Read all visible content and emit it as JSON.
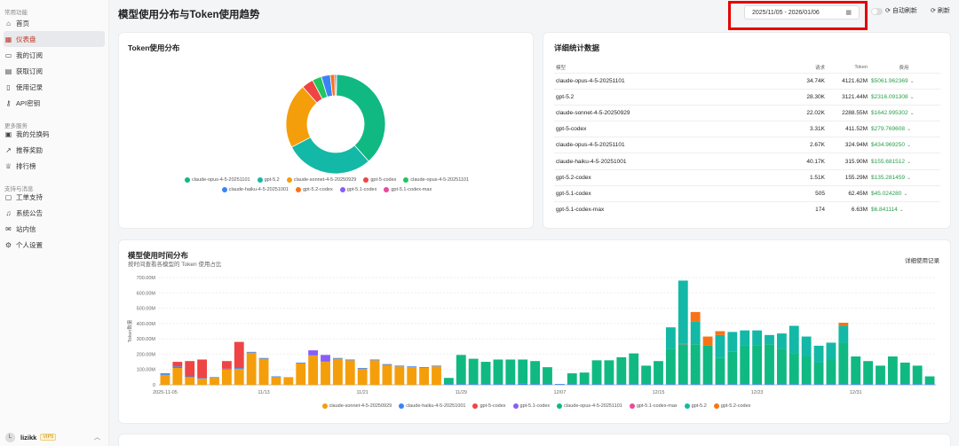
{
  "sidebar": {
    "sections": [
      {
        "title": "常用功能",
        "items": [
          {
            "label": "首页",
            "icon": "home-icon",
            "glyph": "⌂"
          },
          {
            "label": "仪表盘",
            "icon": "dashboard-icon",
            "glyph": "▦",
            "active": true
          },
          {
            "label": "我的订阅",
            "icon": "subscription-icon",
            "glyph": "▭"
          },
          {
            "label": "获取订阅",
            "icon": "cart-icon",
            "glyph": "▤"
          },
          {
            "label": "使用记录",
            "icon": "document-icon",
            "glyph": "▯"
          },
          {
            "label": "API密钥",
            "icon": "key-icon",
            "glyph": "⚷"
          }
        ]
      },
      {
        "title": "更多服务",
        "items": [
          {
            "label": "我的兑换码",
            "icon": "ticket-icon",
            "glyph": "▣"
          },
          {
            "label": "推荐奖励",
            "icon": "trend-icon",
            "glyph": "↗"
          },
          {
            "label": "排行榜",
            "icon": "trophy-icon",
            "glyph": "♕"
          }
        ]
      },
      {
        "title": "支持与消息",
        "items": [
          {
            "label": "工单支持",
            "icon": "message-icon",
            "glyph": "▢"
          },
          {
            "label": "系统公告",
            "icon": "bell-icon",
            "glyph": "♫"
          },
          {
            "label": "站内信",
            "icon": "mail-icon",
            "glyph": "✉"
          },
          {
            "label": "个人设置",
            "icon": "gear-icon",
            "glyph": "⚙"
          }
        ]
      }
    ],
    "user": {
      "avatar": "L",
      "name": "lizikk",
      "badge": "VIP5"
    }
  },
  "header": {
    "title": "模型使用分布与Token使用趋势",
    "date_range": "2025/11/05 - 2026/01/06",
    "auto_refresh_label": "自动刷新",
    "refresh_label": "刷新"
  },
  "pie_card": {
    "title": "Token使用分布",
    "chart_data": {
      "type": "pie",
      "donut": true,
      "legend_placement": "bottom",
      "slices": [
        {
          "name": "claude-opus-4-5-20251101",
          "value": 4121.62,
          "color": "#10b981"
        },
        {
          "name": "gpt-5.2",
          "value": 3121.44,
          "color": "#14b8a6"
        },
        {
          "name": "claude-sonnet-4-5-20250929",
          "value": 2288.55,
          "color": "#f59e0b"
        },
        {
          "name": "gpt-5-codex",
          "value": 411.52,
          "color": "#ef4444"
        },
        {
          "name": "claude-opus-4-5-20251101",
          "value": 324.94,
          "color": "#22c55e"
        },
        {
          "name": "claude-haiku-4-5-20251001",
          "value": 315.9,
          "color": "#3b82f6"
        },
        {
          "name": "gpt-5.2-codex",
          "value": 155.29,
          "color": "#f97316"
        },
        {
          "name": "gpt-5.1-codex",
          "value": 62.45,
          "color": "#8b5cf6"
        },
        {
          "name": "gpt-5.1-codex-max",
          "value": 6.63,
          "color": "#ec4899"
        }
      ]
    }
  },
  "stats_card": {
    "title": "详细统计数据",
    "columns": [
      "模型",
      "请求",
      "Token",
      "费用"
    ],
    "rows": [
      {
        "model": "claude-opus-4-5-20251101",
        "requests": "34.74K",
        "tokens": "4121.62M",
        "cost": "$5061.962369"
      },
      {
        "model": "gpt-5.2",
        "requests": "28.30K",
        "tokens": "3121.44M",
        "cost": "$2316.091308"
      },
      {
        "model": "claude-sonnet-4-5-20250929",
        "requests": "22.02K",
        "tokens": "2288.55M",
        "cost": "$1642.995302"
      },
      {
        "model": "gpt-5-codex",
        "requests": "3.31K",
        "tokens": "411.52M",
        "cost": "$279.769608"
      },
      {
        "model": "claude-opus-4-5-20251101",
        "requests": "2.67K",
        "tokens": "324.94M",
        "cost": "$434.969250"
      },
      {
        "model": "claude-haiku-4-5-20251001",
        "requests": "40.17K",
        "tokens": "315.90M",
        "cost": "$155.681512"
      },
      {
        "model": "gpt-5.2-codex",
        "requests": "1.51K",
        "tokens": "155.29M",
        "cost": "$135.281459"
      },
      {
        "model": "gpt-5.1-codex",
        "requests": "505",
        "tokens": "62.45M",
        "cost": "$45.024280"
      },
      {
        "model": "gpt-5.1-codex-max",
        "requests": "174",
        "tokens": "6.63M",
        "cost": "$6.841114"
      }
    ]
  },
  "bar_card": {
    "title": "模型使用时间分布",
    "subtitle": "按时间查看各模型的 Token 使用占比",
    "detail_link": "详细使用记录",
    "chart_data": {
      "type": "bar",
      "stacked": true,
      "ylabel": "Token数量",
      "ylim": [
        0,
        700
      ],
      "yticks": [
        "0",
        "100.00M",
        "200.00M",
        "300.00M",
        "400.00M",
        "500.00M",
        "600.00M",
        "700.00M"
      ],
      "xtick_labels": [
        {
          "label": "2025-11-05",
          "index": 0
        },
        {
          "label": "11/13",
          "index": 8
        },
        {
          "label": "11/21",
          "index": 16
        },
        {
          "label": "11/29",
          "index": 24
        },
        {
          "label": "12/07",
          "index": 32
        },
        {
          "label": "12/15",
          "index": 40
        },
        {
          "label": "12/23",
          "index": 48
        },
        {
          "label": "12/31",
          "index": 56
        }
      ],
      "legend": [
        {
          "name": "claude-sonnet-4-5-20250929",
          "color": "#f59e0b"
        },
        {
          "name": "claude-haiku-4-5-20251001",
          "color": "#3b82f6"
        },
        {
          "name": "gpt-5-codex",
          "color": "#ef4444"
        },
        {
          "name": "gpt-5.1-codex",
          "color": "#8b5cf6"
        },
        {
          "name": "claude-opus-4-5-20251101",
          "color": "#10b981"
        },
        {
          "name": "gpt-5.1-codex-max",
          "color": "#ec4899"
        },
        {
          "name": "gpt-5.2",
          "color": "#14b8a6"
        },
        {
          "name": "gpt-5.2-codex",
          "color": "#f97316"
        }
      ],
      "series": [
        {
          "name": "claude-sonnet-4-5-20250929",
          "color": "#f59e0b",
          "values": [
            65,
            110,
            50,
            40,
            45,
            100,
            105,
            210,
            170,
            50,
            50,
            140,
            190,
            150,
            170,
            160,
            105,
            160,
            130,
            120,
            115,
            110,
            120,
            0,
            0,
            0,
            0,
            0,
            0,
            0,
            0,
            0,
            0,
            0,
            0,
            0,
            0,
            0,
            0,
            0,
            0,
            0,
            0,
            0,
            0,
            0,
            0,
            0,
            0,
            0,
            0,
            0,
            0,
            0,
            0,
            0,
            0,
            0,
            0,
            0,
            0,
            0,
            0
          ]
        },
        {
          "name": "claude-haiku-4-5-20251001",
          "color": "#3b82f6",
          "values": [
            10,
            10,
            5,
            5,
            5,
            5,
            5,
            5,
            5,
            5,
            0,
            5,
            5,
            5,
            5,
            5,
            5,
            5,
            5,
            5,
            5,
            5,
            5,
            5,
            5,
            5,
            5,
            5,
            5,
            10,
            5,
            5,
            5,
            5,
            5,
            5,
            5,
            5,
            5,
            5,
            5,
            5,
            5,
            5,
            5,
            5,
            5,
            5,
            5,
            5,
            5,
            5,
            5,
            5,
            5,
            5,
            5,
            5,
            5,
            5,
            5,
            5,
            5
          ]
        },
        {
          "name": "gpt-5-codex",
          "color": "#ef4444",
          "values": [
            0,
            30,
            100,
            120,
            0,
            50,
            170,
            0,
            0,
            0,
            0,
            0,
            0,
            0,
            0,
            0,
            0,
            0,
            0,
            0,
            0,
            0,
            0,
            0,
            0,
            0,
            0,
            0,
            0,
            0,
            0,
            0,
            0,
            0,
            0,
            0,
            0,
            0,
            0,
            0,
            0,
            0,
            0,
            0,
            0,
            0,
            0,
            0,
            0,
            0,
            0,
            0,
            0,
            0,
            0,
            0,
            0,
            0,
            0,
            0,
            0,
            0,
            0
          ]
        },
        {
          "name": "gpt-5.1-codex",
          "color": "#8b5cf6",
          "values": [
            0,
            0,
            0,
            0,
            0,
            0,
            0,
            0,
            0,
            0,
            0,
            0,
            30,
            40,
            0,
            0,
            0,
            0,
            0,
            0,
            0,
            0,
            0,
            0,
            0,
            0,
            0,
            0,
            0,
            0,
            0,
            0,
            0,
            0,
            0,
            0,
            0,
            0,
            0,
            0,
            0,
            0,
            0,
            0,
            0,
            0,
            0,
            0,
            0,
            0,
            0,
            0,
            0,
            0,
            0,
            0,
            0,
            0,
            0,
            0,
            0,
            0,
            0
          ]
        },
        {
          "name": "claude-opus-4-5-20251101",
          "color": "#10b981",
          "values": [
            0,
            0,
            0,
            0,
            0,
            0,
            0,
            0,
            0,
            0,
            0,
            0,
            0,
            0,
            0,
            0,
            0,
            0,
            0,
            0,
            0,
            0,
            0,
            40,
            190,
            165,
            145,
            160,
            160,
            155,
            150,
            110,
            0,
            70,
            75,
            155,
            155,
            175,
            200,
            120,
            150,
            230,
            260,
            260,
            250,
            170,
            210,
            250,
            250,
            260,
            230,
            200,
            180,
            140,
            160,
            270,
            180,
            150,
            120,
            180,
            140,
            120,
            50
          ]
        },
        {
          "name": "gpt-5.1-codex-max",
          "color": "#ec4899",
          "values": [
            0,
            0,
            0,
            0,
            0,
            0,
            0,
            0,
            0,
            0,
            0,
            0,
            0,
            0,
            0,
            0,
            0,
            0,
            0,
            0,
            0,
            0,
            0,
            0,
            0,
            0,
            0,
            0,
            0,
            0,
            0,
            0,
            0,
            0,
            0,
            0,
            0,
            0,
            0,
            0,
            0,
            0,
            5,
            0,
            0,
            0,
            0,
            0,
            0,
            0,
            0,
            0,
            0,
            0,
            0,
            0,
            0,
            0,
            0,
            0,
            0,
            0,
            0
          ]
        },
        {
          "name": "gpt-5.2",
          "color": "#14b8a6",
          "values": [
            0,
            0,
            0,
            0,
            0,
            0,
            0,
            0,
            0,
            0,
            0,
            0,
            0,
            0,
            0,
            0,
            0,
            0,
            0,
            0,
            0,
            0,
            0,
            0,
            0,
            0,
            0,
            0,
            0,
            0,
            0,
            0,
            0,
            0,
            0,
            0,
            0,
            0,
            0,
            0,
            0,
            140,
            410,
            150,
            0,
            150,
            130,
            100,
            100,
            60,
            100,
            180,
            130,
            110,
            110,
            110,
            0,
            0,
            0,
            0,
            0,
            0,
            0
          ]
        },
        {
          "name": "gpt-5.2-codex",
          "color": "#f97316",
          "values": [
            0,
            0,
            0,
            0,
            0,
            0,
            0,
            0,
            0,
            0,
            0,
            0,
            0,
            0,
            0,
            0,
            0,
            0,
            0,
            0,
            0,
            0,
            0,
            0,
            0,
            0,
            0,
            0,
            0,
            0,
            0,
            0,
            0,
            0,
            0,
            0,
            0,
            0,
            0,
            0,
            0,
            0,
            0,
            60,
            60,
            25,
            0,
            0,
            0,
            0,
            0,
            0,
            0,
            0,
            0,
            20,
            0,
            0,
            0,
            0,
            0,
            0,
            0
          ]
        }
      ]
    }
  }
}
